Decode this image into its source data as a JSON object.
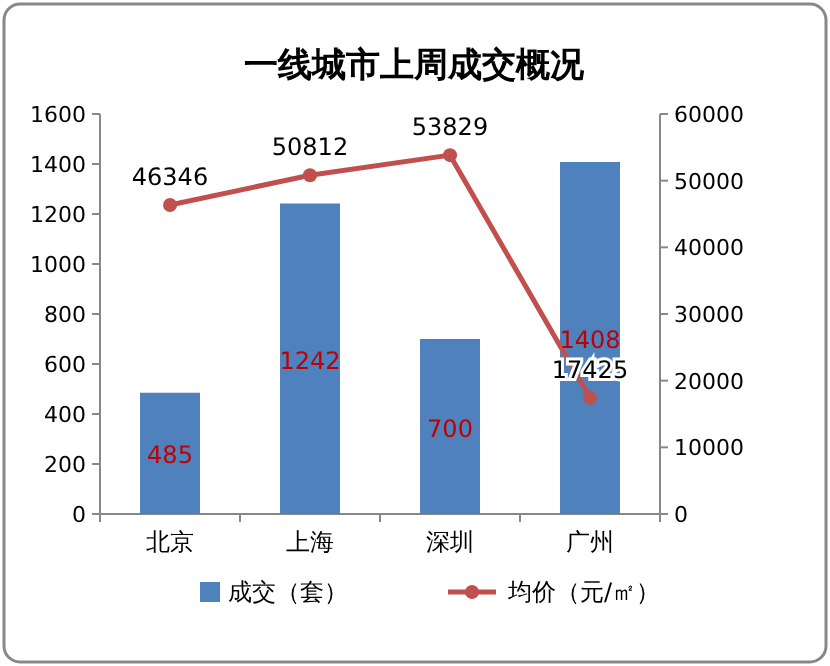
{
  "chart_data": {
    "type": "bar",
    "title": "一线城市上周成交概况",
    "categories": [
      "北京",
      "上海",
      "深圳",
      "广州"
    ],
    "series": [
      {
        "name": "成交（套）",
        "color": "#4f81bd",
        "values": [
          485,
          1242,
          700,
          1408
        ]
      },
      {
        "name": "均价（元/㎡）",
        "type": "line",
        "axis": "y2",
        "color": "#c0504d",
        "marker": "circle",
        "values": [
          46346,
          50812,
          53829,
          17425
        ]
      }
    ],
    "ylim": [
      0,
      1600
    ],
    "yticks": [
      0,
      200,
      400,
      600,
      800,
      1000,
      1200,
      1400,
      1600
    ],
    "y2lim": [
      0,
      60000
    ],
    "y2ticks": [
      0,
      10000,
      20000,
      30000,
      40000,
      50000,
      60000
    ],
    "data_labels": true,
    "legend": "bottom"
  }
}
